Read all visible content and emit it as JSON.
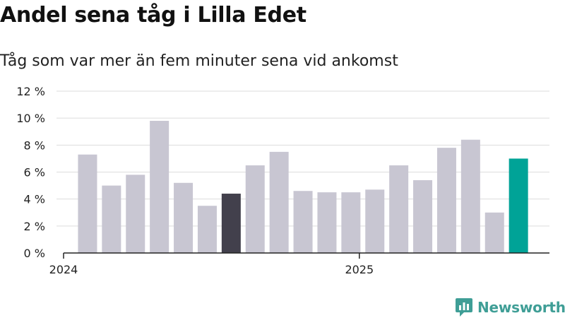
{
  "header": {
    "title": "Andel sena tåg i Lilla Edet",
    "subtitle": "Tåg som var mer än fem minuter sena vid ankomst"
  },
  "brand": {
    "name": "Newsworthy",
    "icon": "newsworthy-logo-icon"
  },
  "colors": {
    "default": "#c8c6d2",
    "highlight": "#42404c",
    "latest": "#00a397",
    "grid": "#dcdcdc",
    "axis": "#222222"
  },
  "chart_data": {
    "type": "bar",
    "x": [
      "2024-01",
      "2024-02",
      "2024-03",
      "2024-04",
      "2024-05",
      "2024-06",
      "2024-07",
      "2024-08",
      "2024-09",
      "2024-10",
      "2024-11",
      "2024-12",
      "2025-01",
      "2025-02",
      "2025-03",
      "2025-04",
      "2025-05",
      "2025-06",
      "2025-07",
      "2025-08"
    ],
    "values": [
      7.3,
      5.0,
      5.8,
      9.8,
      5.2,
      3.5,
      4.4,
      6.5,
      7.5,
      4.6,
      4.5,
      4.5,
      4.7,
      6.5,
      5.4,
      7.8,
      8.4,
      3.0,
      7.0,
      null
    ],
    "highlight_index": 6,
    "latest_index": 18,
    "x_tick_labels": [
      {
        "label": "2024",
        "at": "2024-01"
      },
      {
        "label": "2025",
        "at": "2025-01"
      }
    ],
    "y_ticks": [
      0,
      2,
      4,
      6,
      8,
      10,
      12
    ],
    "y_tick_labels": [
      "0 %",
      "2 %",
      "4 %",
      "6 %",
      "8 %",
      "10 %",
      "12 %"
    ],
    "ylim": [
      0,
      12
    ],
    "grid": true,
    "legend": "none"
  }
}
